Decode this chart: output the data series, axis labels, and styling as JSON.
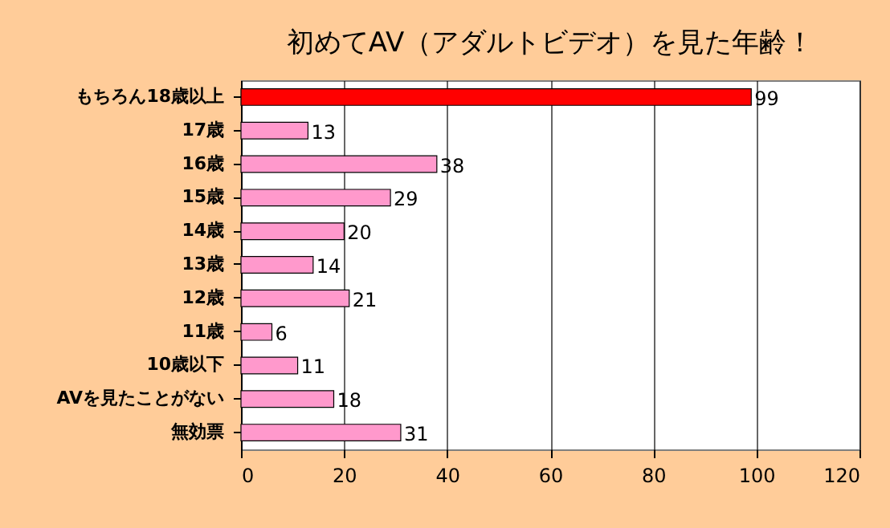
{
  "chart_data": {
    "type": "bar",
    "orientation": "horizontal",
    "title": "初めてAV（アダルトビデオ）を見た年齢！",
    "categories": [
      "もちろん18歳以上",
      "17歳",
      "16歳",
      "15歳",
      "14歳",
      "13歳",
      "12歳",
      "11歳",
      "10歳以下",
      "AVを見たことがない",
      "無効票"
    ],
    "values": [
      99,
      13,
      38,
      29,
      20,
      14,
      21,
      6,
      11,
      18,
      31
    ],
    "colors": [
      "#ff0000",
      "#ff99cc",
      "#ff99cc",
      "#ff99cc",
      "#ff99cc",
      "#ff99cc",
      "#ff99cc",
      "#ff99cc",
      "#ff99cc",
      "#ff99cc",
      "#ff99cc"
    ],
    "xlim": [
      0,
      120
    ],
    "xticks": [
      0,
      20,
      40,
      60,
      80,
      100,
      120
    ],
    "grid": "x",
    "data_labels": true
  }
}
